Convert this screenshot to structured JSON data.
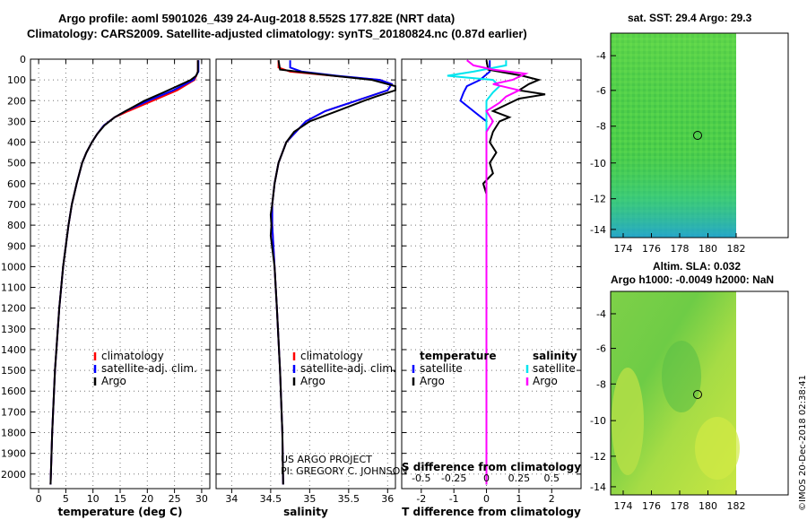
{
  "header": {
    "line1": "Argo profile: aoml 5901026_439 24-Aug-2018 8.552S 177.82E (NRT data)",
    "line2": "Climatology: CARS2009. Satellite-adjusted climatology: synTS_20180824.nc (0.87d earlier)"
  },
  "maps": {
    "sst_title": "sat. SST: 29.4 Argo: 29.3",
    "sla_title1": "Altim. SLA: 0.032",
    "sla_title2": "Argo h1000: -0.0049 h2000: NaN",
    "lat_ticks": [
      "-4",
      "-6",
      "-8",
      "-10",
      "-12",
      "-14"
    ],
    "lon_ticks": [
      "174",
      "176",
      "178",
      "180",
      "182"
    ]
  },
  "watermark": "©IMOS 20-Dec-2018 02:38:41",
  "credit": {
    "line1": "US ARGO PROJECT",
    "line2": "PI: GREGORY C. JOHNSON"
  },
  "colors": {
    "climatology": "#ff0000",
    "satellite": "#0000ff",
    "argo": "#000000",
    "sat_salinity": "#00e5ee",
    "argo_salinity": "#ff00ff"
  },
  "chart_data": [
    {
      "type": "line",
      "title": "",
      "xlabel": "temperature (deg C)",
      "ylabel": "",
      "xlim": [
        -1.5,
        31.5
      ],
      "ylim": [
        2070,
        0
      ],
      "x_ticks": [
        "0",
        "5",
        "10",
        "15",
        "20",
        "25",
        "30"
      ],
      "y_ticks": [
        "0",
        "100",
        "200",
        "300",
        "400",
        "500",
        "600",
        "700",
        "800",
        "900",
        "1000",
        "1100",
        "1200",
        "1300",
        "1400",
        "1500",
        "1600",
        "1700",
        "1800",
        "1900",
        "2000"
      ],
      "legend": [
        "climatology",
        "satellite-adj. clim.",
        "Argo"
      ],
      "series": [
        {
          "name": "climatology",
          "depth": [
            5,
            60,
            100,
            150,
            200,
            250,
            280,
            320,
            360,
            400,
            450,
            500,
            600,
            700,
            800,
            1000,
            1200,
            1500,
            1800,
            2050
          ],
          "values": [
            29.3,
            29.3,
            28.7,
            25.5,
            21.0,
            16.5,
            14.0,
            12.0,
            10.8,
            9.8,
            8.8,
            8.0,
            7.0,
            6.1,
            5.5,
            4.5,
            3.8,
            3.0,
            2.5,
            2.2
          ]
        },
        {
          "name": "satellite-adj. clim.",
          "depth": [
            5,
            60,
            100,
            150,
            200,
            250,
            280,
            320,
            360,
            400,
            450,
            500,
            600,
            700,
            800,
            1000,
            1200,
            1500,
            1800,
            2050
          ],
          "values": [
            29.4,
            29.4,
            28.5,
            24.8,
            20.2,
            16.0,
            14.0,
            12.0,
            10.8,
            9.8,
            8.8,
            8.0,
            7.0,
            6.1,
            5.5,
            4.5,
            3.8,
            3.0,
            2.5,
            2.2
          ]
        },
        {
          "name": "Argo",
          "depth": [
            5,
            60,
            80,
            100,
            130,
            160,
            200,
            250,
            280,
            320,
            360,
            400,
            450,
            500,
            600,
            700,
            800,
            1000,
            1200,
            1500,
            1800,
            2050
          ],
          "values": [
            29.3,
            29.3,
            29.0,
            28.0,
            25.5,
            23.0,
            19.5,
            16.0,
            14.0,
            12.1,
            10.8,
            9.8,
            8.8,
            8.0,
            7.0,
            6.1,
            5.5,
            4.5,
            3.8,
            3.0,
            2.5,
            2.2
          ]
        }
      ]
    },
    {
      "type": "line",
      "title": "",
      "xlabel": "salinity",
      "xlim": [
        33.8,
        36.1
      ],
      "ylim": [
        2070,
        0
      ],
      "x_ticks": [
        "34",
        "34.5",
        "35",
        "35.5",
        "36"
      ],
      "legend": [
        "climatology",
        "satellite-adj. clim.",
        "Argo"
      ],
      "series": [
        {
          "name": "climatology",
          "depth": [
            5,
            40,
            60,
            80,
            100,
            120,
            150,
            200,
            250,
            300,
            400,
            500,
            600,
            700,
            800,
            1000,
            1200,
            1500,
            1800,
            2050
          ],
          "values": [
            34.6,
            34.6,
            34.75,
            35.3,
            35.9,
            36.05,
            36.0,
            35.6,
            35.2,
            34.95,
            34.7,
            34.6,
            34.55,
            34.52,
            34.52,
            34.55,
            34.58,
            34.62,
            34.65,
            34.66
          ]
        },
        {
          "name": "satellite-adj. clim.",
          "depth": [
            5,
            40,
            60,
            80,
            100,
            120,
            150,
            200,
            250,
            300,
            400,
            500,
            600,
            700,
            800,
            1000,
            1200,
            1500,
            1800,
            2050
          ],
          "values": [
            34.75,
            34.75,
            34.9,
            35.35,
            35.9,
            36.05,
            36.0,
            35.6,
            35.2,
            34.95,
            34.7,
            34.6,
            34.55,
            34.52,
            34.52,
            34.55,
            34.58,
            34.62,
            34.65,
            34.66
          ]
        },
        {
          "name": "Argo",
          "depth": [
            5,
            50,
            80,
            100,
            130,
            150,
            180,
            200,
            250,
            300,
            350,
            400,
            500,
            600,
            700,
            750,
            800,
            850,
            1000,
            1200,
            1500,
            1800,
            2050
          ],
          "values": [
            34.6,
            34.62,
            35.3,
            35.8,
            36.1,
            36.1,
            35.85,
            35.7,
            35.35,
            35.0,
            34.8,
            34.7,
            34.6,
            34.55,
            34.52,
            34.5,
            34.51,
            34.5,
            34.55,
            34.58,
            34.62,
            34.65,
            34.66
          ]
        }
      ]
    },
    {
      "type": "line",
      "title": "",
      "xlabel": "T difference from climatology",
      "xlabel_top": "S difference from climatology",
      "xlim": [
        -2.6,
        2.9
      ],
      "xlim_top": [
        -0.65,
        0.725
      ],
      "ylim": [
        2070,
        0
      ],
      "x_ticks": [
        "-2",
        "-1",
        "0",
        "1",
        "2"
      ],
      "x_ticks_top": [
        "-0.5",
        "-0.25",
        "0",
        "0.25",
        "0.5"
      ],
      "legend_temperature_title": "temperature",
      "legend_salinity_title": "salinity",
      "legend_temperature": [
        "satellite",
        "Argo"
      ],
      "legend_salinity": [
        "satellite",
        "Argo"
      ],
      "series": [
        {
          "name": "T satellite",
          "depth": [
            5,
            60,
            100,
            130,
            160,
            200,
            250,
            300,
            400,
            500,
            600,
            700,
            800,
            1000,
            1500,
            2050
          ],
          "values": [
            0.1,
            0.1,
            -0.2,
            -0.6,
            -0.7,
            -0.8,
            -0.4,
            0.0,
            0.0,
            0.0,
            0.0,
            0.0,
            0.0,
            0.0,
            0.0,
            0.0
          ]
        },
        {
          "name": "T Argo",
          "depth": [
            5,
            50,
            80,
            100,
            120,
            150,
            170,
            190,
            220,
            250,
            280,
            300,
            350,
            400,
            450,
            500,
            550,
            600,
            650,
            800,
            1000,
            1300,
            1500,
            2050
          ],
          "values": [
            0.0,
            0.05,
            1.1,
            1.6,
            1.3,
            1.0,
            1.8,
            1.0,
            0.6,
            0.2,
            0.7,
            0.4,
            0.2,
            0.1,
            0.3,
            0.1,
            0.2,
            -0.1,
            0.0,
            0.0,
            0.0,
            0.0,
            0.0,
            0.0
          ]
        },
        {
          "name": "S satellite",
          "depth": [
            5,
            30,
            60,
            80,
            100,
            130,
            160,
            200,
            250,
            300,
            400,
            600,
            800,
            1000,
            1500,
            2050
          ],
          "values": [
            0.15,
            0.15,
            -0.1,
            -0.3,
            0.05,
            0.1,
            0.05,
            0.0,
            0.0,
            0.0,
            0.0,
            0.0,
            0.0,
            0.0,
            0.0,
            0.0
          ]
        },
        {
          "name": "S Argo",
          "depth": [
            5,
            30,
            50,
            70,
            100,
            120,
            150,
            180,
            210,
            250,
            300,
            350,
            400,
            500,
            600,
            700,
            800,
            1000,
            1500,
            2050
          ],
          "values": [
            -0.15,
            -0.1,
            0.05,
            0.3,
            0.2,
            0.05,
            0.25,
            0.15,
            0.1,
            0.0,
            0.05,
            0.0,
            0.0,
            0.0,
            0.0,
            0.0,
            0.0,
            0.0,
            0.0,
            0.0
          ]
        }
      ]
    }
  ]
}
